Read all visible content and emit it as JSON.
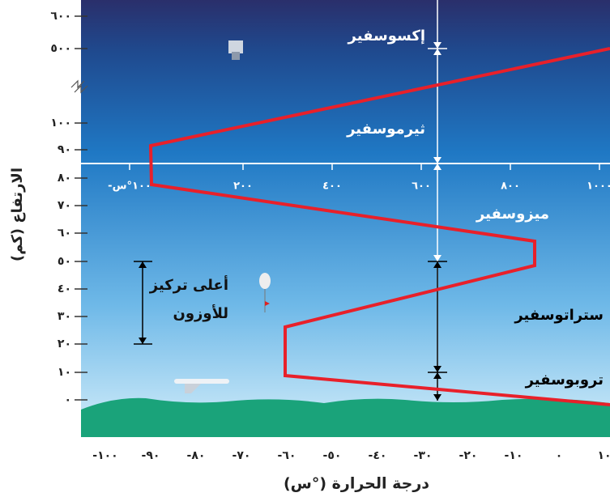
{
  "y_axis": {
    "title": "الارتفاع (كم)",
    "ticks": [
      "٦٠٠",
      "٥٠٠",
      "١٠٠",
      "٩٠",
      "٨٠",
      "٧٠",
      "٦٠",
      "٥٠",
      "٤٠",
      "٣٠",
      "٢٠",
      "١٠",
      "٠"
    ]
  },
  "x_axis": {
    "title": "درجة الحرارة (°س)",
    "ticks": [
      "-١٠٠",
      "-٩٠",
      "-٨٠",
      "-٧٠",
      "-٦٠",
      "-٥٠",
      "-٤٠",
      "-٣٠",
      "-٢٠",
      "-١٠",
      "٠",
      "١٠"
    ]
  },
  "upper_axis": {
    "ticks": [
      "-١٠٠°س",
      "٢٠٠",
      "٤٠٠",
      "٦٠٠",
      "٨٠٠",
      "١٠٠٠"
    ]
  },
  "layers": [
    "إكسوسفير",
    "ثيرموسفير",
    "ميزوسفير",
    "ستراتوسفير",
    "تروبوسفير"
  ],
  "ozone_label": [
    "أعلى تركيز",
    "للأوزون"
  ]
}
